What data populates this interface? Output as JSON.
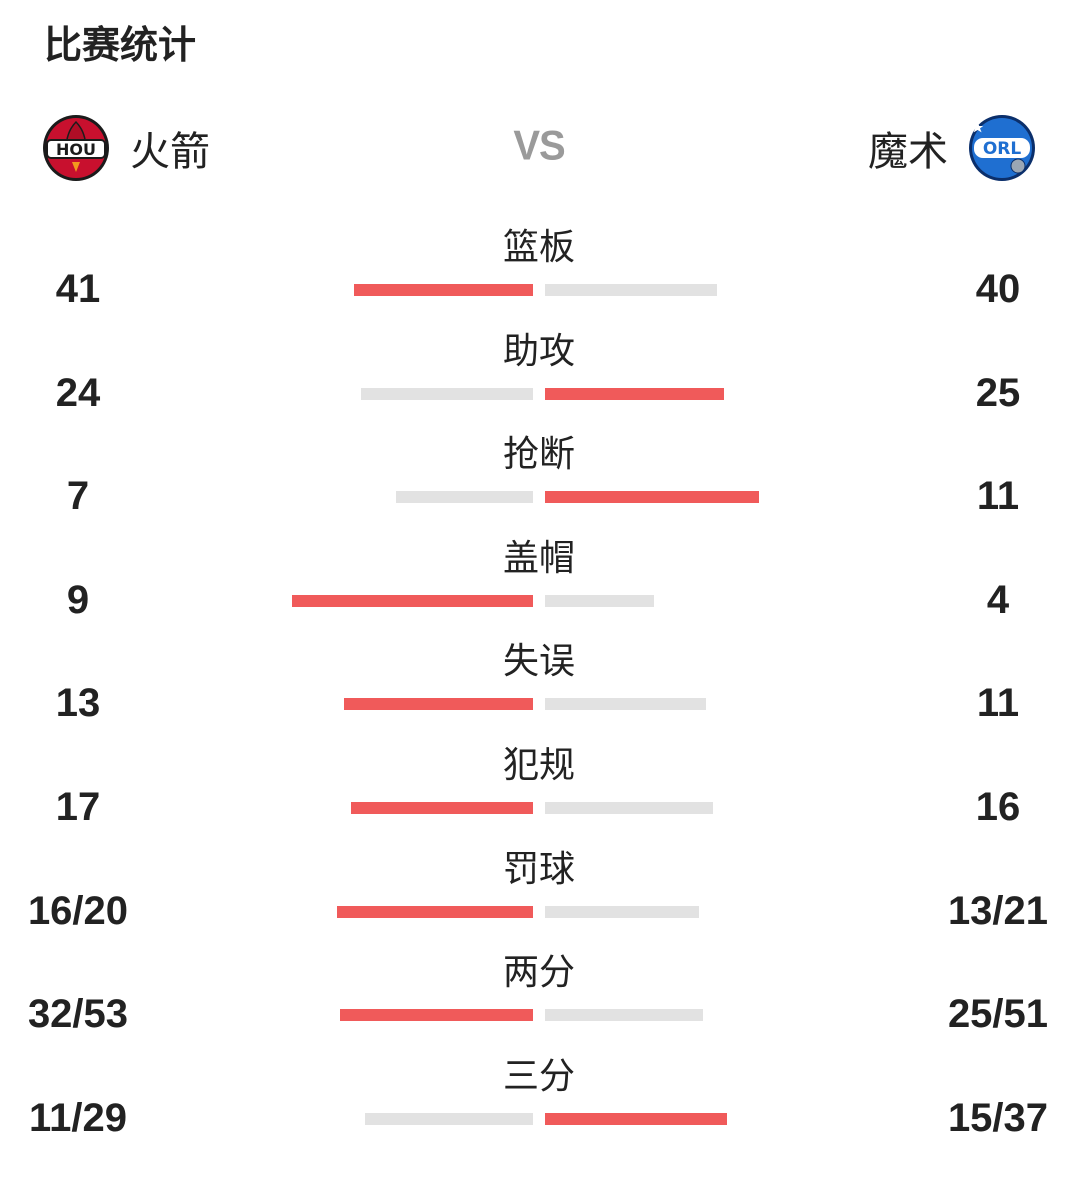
{
  "title": "比赛统计",
  "vs_label": "VS",
  "home": {
    "name": "火箭",
    "logo_text": "HOU",
    "logo_icon": "rockets-logo-icon"
  },
  "away": {
    "name": "魔术",
    "logo_text": "ORL",
    "logo_icon": "magic-logo-icon"
  },
  "colors": {
    "accent": "#f05a5a",
    "muted": "#e2e2e2"
  },
  "stats": [
    {
      "label": "篮板",
      "home": "41",
      "away": "40",
      "home_share": 0.51,
      "away_share": 0.49
    },
    {
      "label": "助攻",
      "home": "24",
      "away": "25",
      "home_share": 0.49,
      "away_share": 0.51
    },
    {
      "label": "抢断",
      "home": "7",
      "away": "11",
      "home_share": 0.39,
      "away_share": 0.61
    },
    {
      "label": "盖帽",
      "home": "9",
      "away": "4",
      "home_share": 0.69,
      "away_share": 0.31
    },
    {
      "label": "失误",
      "home": "13",
      "away": "11",
      "home_share": 0.54,
      "away_share": 0.46
    },
    {
      "label": "犯规",
      "home": "17",
      "away": "16",
      "home_share": 0.52,
      "away_share": 0.48
    },
    {
      "label": "罚球",
      "home": "16/20",
      "away": "13/21",
      "home_share": 0.56,
      "away_share": 0.44
    },
    {
      "label": "两分",
      "home": "32/53",
      "away": "25/51",
      "home_share": 0.55,
      "away_share": 0.45
    },
    {
      "label": "三分",
      "home": "11/29",
      "away": "15/37",
      "home_share": 0.48,
      "away_share": 0.52
    }
  ]
}
